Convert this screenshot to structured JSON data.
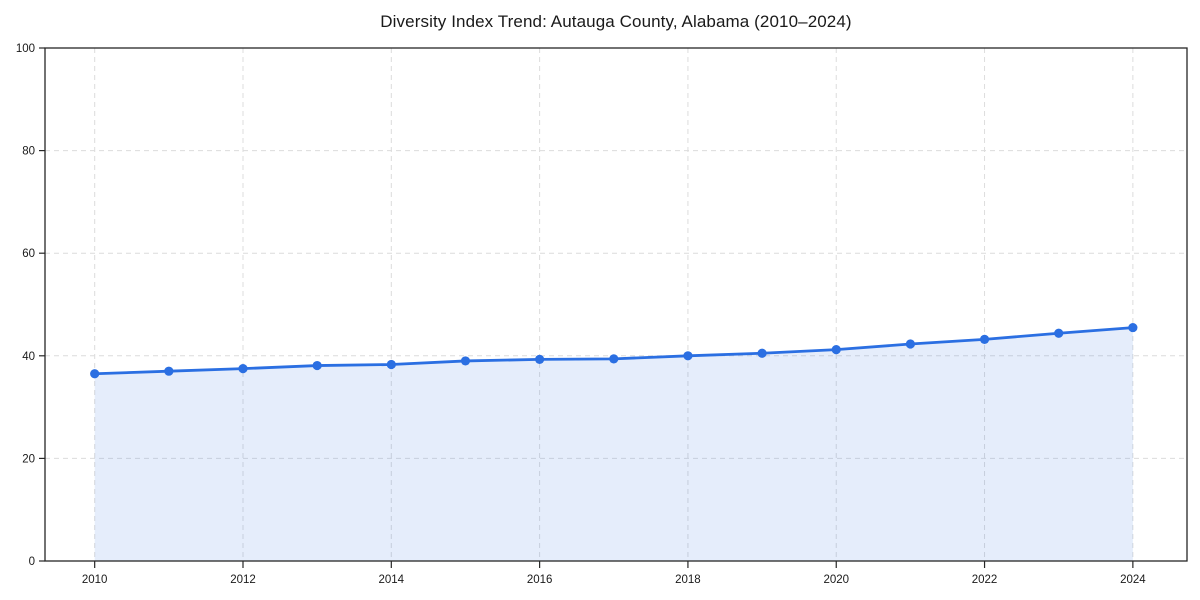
{
  "chart_data": {
    "type": "area",
    "title": "Diversity Index Trend: Autauga County, Alabama (2010–2024)",
    "x": [
      2010,
      2011,
      2012,
      2013,
      2014,
      2015,
      2016,
      2017,
      2018,
      2019,
      2020,
      2021,
      2022,
      2023,
      2024
    ],
    "values": [
      36.5,
      37.0,
      37.5,
      38.1,
      38.3,
      39.0,
      39.3,
      39.4,
      40.0,
      40.5,
      41.2,
      42.3,
      43.2,
      44.4,
      45.5
    ],
    "xlabel": "",
    "ylabel": "",
    "xlim": [
      2009.33,
      2024.73
    ],
    "ylim": [
      0,
      100
    ],
    "xticks": [
      2010,
      2012,
      2014,
      2016,
      2018,
      2020,
      2022,
      2024
    ],
    "yticks": [
      0,
      20,
      40,
      60,
      80,
      100
    ],
    "grid": "dashed",
    "legend": "none",
    "marker": "circle",
    "colors": {
      "line": "#2b6fe2",
      "marker": "#2b6fe2",
      "area_fill": "rgba(43,111,226,0.12)",
      "grid": "#dcdcdc",
      "axis": "#262626",
      "text": "#1a1a1a",
      "background": "#ffffff"
    }
  }
}
